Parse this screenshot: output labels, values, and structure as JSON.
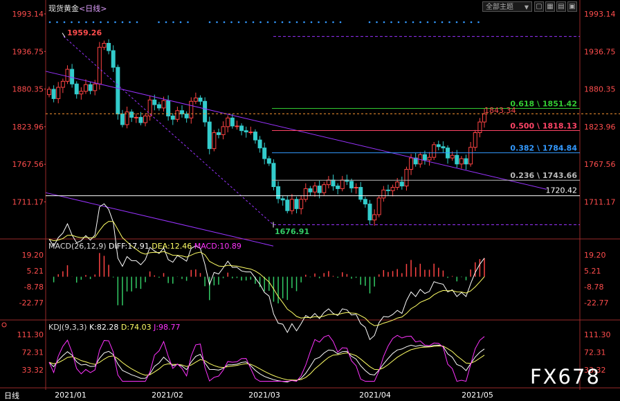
{
  "header": {
    "instrument": "现货黄金",
    "period": "<日线>",
    "topic_select": "全部主题",
    "toolbar_icons": [
      "triangle-down-icon",
      "expand-icon",
      "layout-icon",
      "settings-icon"
    ]
  },
  "price_axis": {
    "ticks": [
      1993.14,
      1936.75,
      1880.35,
      1823.96,
      1767.56,
      1711.17
    ],
    "labels": [
      "1993.14",
      "1936.75",
      "1880.35",
      "1823.96",
      "1767.56",
      "1711.17"
    ]
  },
  "x_axis": {
    "labels": [
      "2021/01",
      "2021/02",
      "2021/03",
      "2021/04",
      "2021/05"
    ]
  },
  "annotations": {
    "high": "1959.26",
    "low": "1676.91",
    "last": "1843.34",
    "support": "1720.42"
  },
  "fib_levels": [
    {
      "label": "0.618 \\ 1851.42",
      "value": 1851.42,
      "color": "#33cc33"
    },
    {
      "label": "0.500 \\ 1818.13",
      "value": 1818.13,
      "color": "#ff4466"
    },
    {
      "label": "0.382 \\ 1784.84",
      "value": 1784.84,
      "color": "#3399ff"
    },
    {
      "label": "0.236 \\ 1743.66",
      "value": 1743.66,
      "color": "#bbbbbb"
    }
  ],
  "macd": {
    "title": "MACD(26,12,9)",
    "diff": "DIFF:17.91",
    "dea": "DEA:12.46",
    "macd": "MACD:10.89",
    "ticks": [
      "19.20",
      "5.21",
      "-8.78",
      "-22.77"
    ]
  },
  "kdj": {
    "title": "KDJ(9,3,3)",
    "k": "K:82.28",
    "d": "D:74.03",
    "j": "J:98.77",
    "ticks": [
      "111.30",
      "72.31",
      "33.32"
    ]
  },
  "footer_label": "日线",
  "watermark": "FX678",
  "colors": {
    "up": "#ff4444",
    "down": "#33cccc",
    "trendline": "#9933ff",
    "diff_line": "#ffffff",
    "dea_line": "#ffff66",
    "j_line": "#ff33ff"
  },
  "chart_data": {
    "type": "candlestick",
    "title": "现货黄金 日线",
    "x_range": [
      "2020-12-14",
      "2021-05-06"
    ],
    "y_range": [
      1660,
      1993.14
    ],
    "high_point": 1959.26,
    "low_point": 1676.91,
    "last_close": 1843.34,
    "fibonacci": [
      1851.42,
      1818.13,
      1784.84,
      1743.66
    ],
    "horizontal_level": 1720.42,
    "closes_approx": [
      1880,
      1866,
      1883,
      1892,
      1910,
      1888,
      1873,
      1877,
      1887,
      1878,
      1888,
      1943,
      1949,
      1938,
      1913,
      1843,
      1827,
      1846,
      1838,
      1838,
      1830,
      1840,
      1864,
      1857,
      1852,
      1863,
      1840,
      1835,
      1848,
      1843,
      1837,
      1862,
      1867,
      1862,
      1831,
      1791,
      1815,
      1812,
      1824,
      1837,
      1825,
      1825,
      1818,
      1816,
      1816,
      1804,
      1792,
      1776,
      1769,
      1734,
      1716,
      1714,
      1698,
      1715,
      1701,
      1715,
      1731,
      1726,
      1735,
      1725,
      1737,
      1744,
      1735,
      1731,
      1744,
      1742,
      1732,
      1733,
      1715,
      1708,
      1684,
      1692,
      1717,
      1729,
      1728,
      1733,
      1741,
      1735,
      1760,
      1777,
      1768,
      1782,
      1774,
      1778,
      1797,
      1794,
      1792,
      1777,
      1781,
      1768,
      1776,
      1768,
      1793,
      1815,
      1831,
      1843
    ]
  }
}
